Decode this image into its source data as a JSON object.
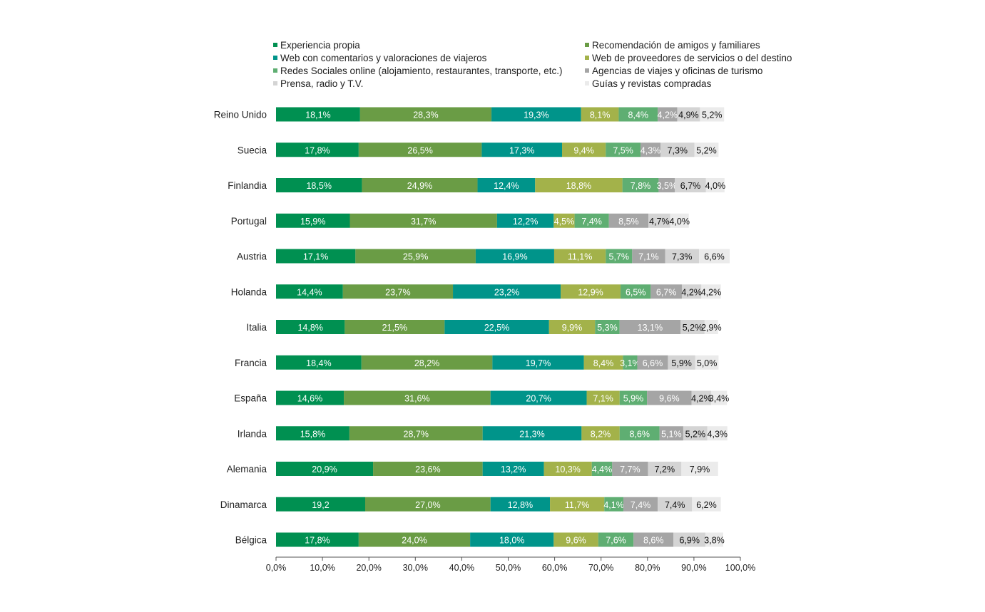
{
  "chart_data": {
    "type": "bar",
    "orientation": "horizontal",
    "stacked": true,
    "categories": [
      "Reino Unido",
      "Suecia",
      "Finlandia",
      "Portugal",
      "Austria",
      "Holanda",
      "Italia",
      "Francia",
      "España",
      "Irlanda",
      "Alemania",
      "Dinamarca",
      "Bélgica"
    ],
    "series": [
      {
        "name": "Experiencia propia",
        "color": "#009051",
        "label_color": "#ffffff",
        "values": [
          18.1,
          17.8,
          18.5,
          15.9,
          17.1,
          14.4,
          14.8,
          18.4,
          14.6,
          15.8,
          20.9,
          19.2,
          17.8
        ],
        "labels": [
          "18,1%",
          "17,8%",
          "18,5%",
          "15,9%",
          "17,1%",
          "14,4%",
          "14,8%",
          "18,4%",
          "14,6%",
          "15,8%",
          "20,9%",
          "19,2",
          "17,8%"
        ]
      },
      {
        "name": "Recomendación de amigos y familiares",
        "color": "#6a9c45",
        "label_color": "#ffffff",
        "values": [
          28.3,
          26.5,
          24.9,
          31.7,
          25.9,
          23.7,
          21.5,
          28.2,
          31.6,
          28.7,
          23.6,
          27.0,
          24.0
        ],
        "labels": [
          "28,3%",
          "26,5%",
          "24,9%",
          "31,7%",
          "25,9%",
          "23,7%",
          "21,5%",
          "28,2%",
          "31,6%",
          "28,7%",
          "23,6%",
          "27,0%",
          "24,0%"
        ]
      },
      {
        "name": "Web con comentarios y valoraciones de viajeros",
        "color": "#00948a",
        "label_color": "#ffffff",
        "values": [
          19.3,
          17.3,
          12.4,
          12.2,
          16.9,
          23.2,
          22.5,
          19.7,
          20.7,
          21.3,
          13.2,
          12.8,
          18.0
        ],
        "labels": [
          "19,3%",
          "17,3%",
          "12,4%",
          "12,2%",
          "16,9%",
          "23,2%",
          "22,5%",
          "19,7%",
          "20,7%",
          "21,3%",
          "13,2%",
          "12,8%",
          "18,0%"
        ]
      },
      {
        "name": "Web de proveedores de servicios o del destino",
        "color": "#a3b24a",
        "label_color": "#ffffff",
        "values": [
          8.1,
          9.4,
          18.8,
          4.5,
          11.1,
          12.9,
          9.9,
          8.4,
          7.1,
          8.2,
          10.3,
          11.7,
          9.6
        ],
        "labels": [
          "8,1%",
          "9,4%",
          "18,8%",
          "4,5%",
          "11,1%",
          "12,9%",
          "9,9%",
          "8,4%",
          "7,1%",
          "8,2%",
          "10,3%",
          "11,7%",
          "9,6%"
        ]
      },
      {
        "name": "Redes Sociales online (alojamiento, restaurantes, transporte, etc.)",
        "color": "#5fae72",
        "label_color": "#ffffff",
        "values": [
          8.4,
          7.5,
          7.8,
          7.4,
          5.7,
          6.5,
          5.3,
          3.1,
          5.9,
          8.6,
          4.4,
          4.1,
          7.6
        ],
        "labels": [
          "8,4%",
          "7,5%",
          "7,8%",
          "7,4%",
          "5,7%",
          "6,5%",
          "5,3%",
          "3,1%",
          "5,9%",
          "8,6%",
          "4,4%",
          "4,1%",
          "7,6%"
        ]
      },
      {
        "name": "Agencias de viajes y oficinas de turismo",
        "color": "#a5a5a5",
        "label_color": "#ffffff",
        "values": [
          4.2,
          4.3,
          3.5,
          8.5,
          7.1,
          6.7,
          13.1,
          6.6,
          9.6,
          5.1,
          7.7,
          7.4,
          8.6
        ],
        "labels": [
          "4,2%",
          "4,3%",
          "3,5%",
          "8,5%",
          "7,1%",
          "6,7%",
          "13,1%",
          "6,6%",
          "9,6%",
          "5,1%",
          "7,7%",
          "7,4%",
          "8,6%"
        ]
      },
      {
        "name": "Prensa, radio y T.V.",
        "color": "#d4d4d4",
        "label_color": "#111111",
        "values": [
          4.9,
          7.3,
          6.7,
          4.7,
          7.3,
          4.2,
          5.2,
          5.9,
          4.2,
          5.2,
          7.2,
          7.4,
          6.9
        ],
        "labels": [
          "4,9%",
          "7,3%",
          "6,7%",
          "4,7%",
          "7,3%",
          "4,2%",
          "5,2%",
          "5,9%",
          "4,2%",
          "5,2%",
          "7,2%",
          "7,4%",
          "6,9%"
        ]
      },
      {
        "name": "Guías y revistas compradas",
        "color": "#ebebeb",
        "label_color": "#111111",
        "values": [
          5.2,
          5.2,
          4.0,
          4.0,
          6.6,
          4.2,
          2.9,
          5.0,
          3.4,
          4.3,
          7.9,
          6.2,
          3.8
        ],
        "labels": [
          "5,2%",
          "5,2%",
          "4,0%",
          "4,0%",
          "6,6%",
          "4,2%",
          "2,9%",
          "5,0%",
          "3,4%",
          "4,3%",
          "7,9%",
          "6,2%",
          "3,8%"
        ]
      }
    ],
    "xlim": [
      0,
      100
    ],
    "xticks": [
      "0,0%",
      "10,0%",
      "20,0%",
      "30,0%",
      "40,0%",
      "50,0%",
      "60,0%",
      "70,0%",
      "80,0%",
      "90,0%",
      "100,0%"
    ],
    "grid": false,
    "legend_position": "top"
  }
}
